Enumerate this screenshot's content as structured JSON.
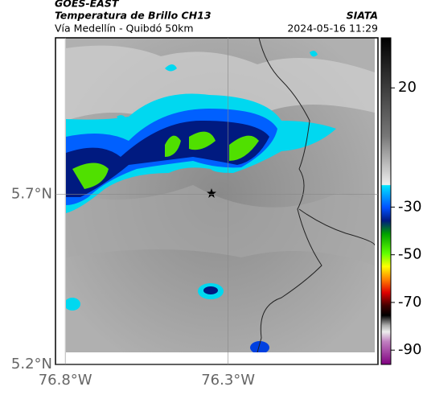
{
  "header": {
    "title": "GOES-EAST",
    "subtitle": "Temperatura de Brillo CH13",
    "route": "Vía Medellín - Quibdó 50km",
    "source": "SIATA",
    "datetime": "2024-05-16 11:29"
  },
  "map": {
    "xlim": [
      -76.83,
      -75.84
    ],
    "ylim": [
      5.2,
      6.16
    ],
    "xticks": [
      {
        "value": -76.8,
        "label": "76.8°W"
      },
      {
        "value": -76.3,
        "label": "76.3°W"
      }
    ],
    "yticks": [
      {
        "value": 5.7,
        "label": "5.7°N"
      },
      {
        "value": 5.2,
        "label": "5.2°N"
      }
    ]
  },
  "colorbar": {
    "lim": [
      41,
      -96
    ],
    "ticks": [
      20,
      -30,
      -50,
      -70,
      -90
    ]
  }
}
